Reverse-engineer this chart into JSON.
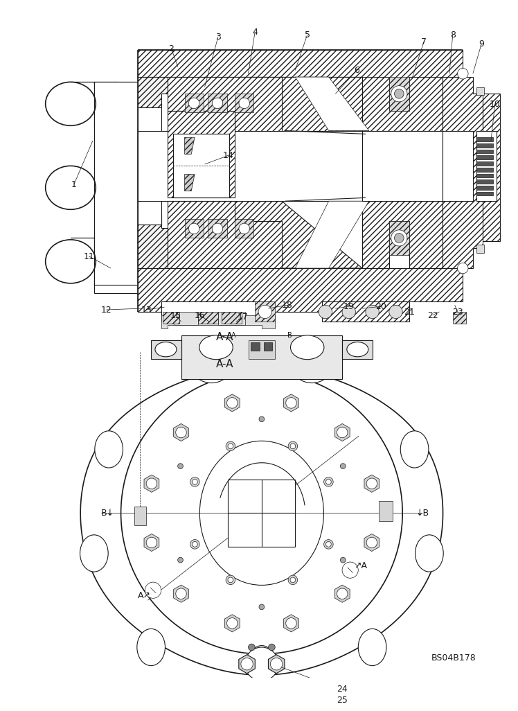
{
  "bg_color": "#ffffff",
  "lc": "#1a1a1a",
  "fig_width": 7.52,
  "fig_height": 10.0,
  "dpi": 100,
  "watermark": "BS04B178",
  "top_labels": [
    [
      "1",
      100,
      580
    ],
    [
      "2",
      248,
      62
    ],
    [
      "3",
      315,
      45
    ],
    [
      "4",
      375,
      35
    ],
    [
      "5",
      450,
      38
    ],
    [
      "6",
      520,
      95
    ],
    [
      "7",
      622,
      52
    ],
    [
      "8",
      665,
      42
    ],
    [
      "9",
      705,
      58
    ],
    [
      "10",
      728,
      145
    ],
    [
      "11",
      120,
      372
    ],
    [
      "12",
      145,
      452
    ],
    [
      "13",
      205,
      452
    ],
    [
      "14",
      330,
      222
    ],
    [
      "15",
      248,
      458
    ],
    [
      "16",
      285,
      458
    ],
    [
      "17",
      350,
      462
    ],
    [
      "18",
      415,
      445
    ],
    [
      "19",
      508,
      447
    ],
    [
      "20",
      558,
      447
    ],
    [
      "21",
      598,
      455
    ],
    [
      "22",
      635,
      458
    ],
    [
      "23",
      672,
      455
    ]
  ],
  "bottom_labels": [
    [
      "A-A",
      325,
      495
    ],
    [
      "24",
      530,
      892
    ],
    [
      "25",
      530,
      910
    ],
    [
      "A",
      148,
      645
    ],
    [
      "B",
      130,
      710
    ],
    [
      "B",
      625,
      710
    ],
    [
      "A",
      602,
      830
    ]
  ]
}
